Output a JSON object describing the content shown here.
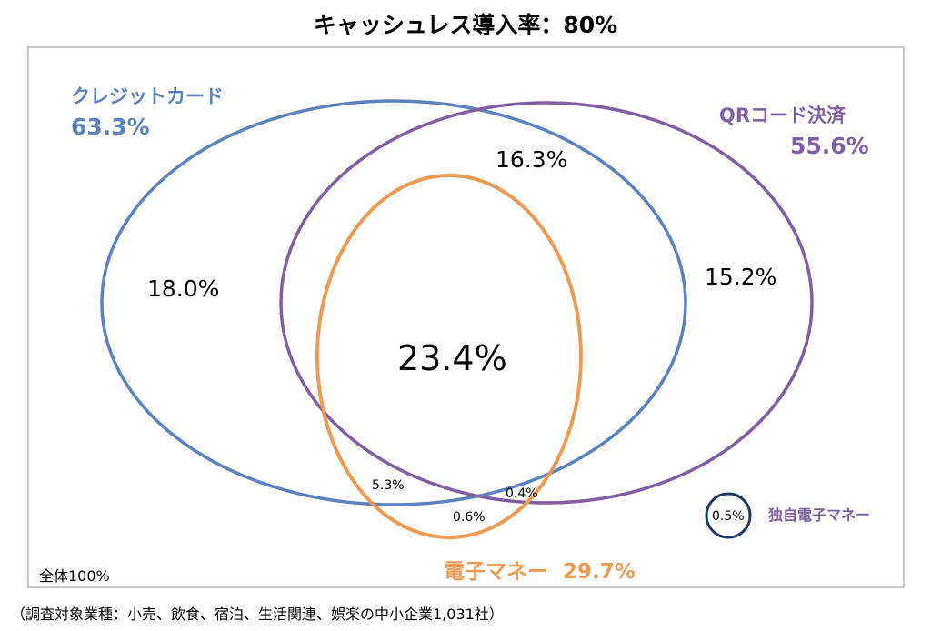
{
  "title": "キャッシュレス導入率：80%",
  "sets": {
    "credit": {
      "name": "クレジットカード",
      "percent": "63.3%",
      "color": "#5b82bc"
    },
    "qr": {
      "name": "QRコード決済",
      "percent": "55.6%",
      "color": "#7d5fa2"
    },
    "emoney": {
      "name": "電子マネー",
      "percent": "29.7%",
      "color": "#ec9b54"
    },
    "own": {
      "name": "独自電子マネー",
      "percent": "0.5%",
      "color": "#1f3864"
    }
  },
  "regions": {
    "credit_only": "18.0%",
    "credit_qr": "16.3%",
    "qr_only": "15.2%",
    "all_three": "23.4%",
    "credit_emoney": "5.3%",
    "qr_emoney": "0.4%",
    "emoney_only": "0.6%"
  },
  "total_label": "全体100%",
  "footnote": "（調査対象業種：小売、飲食、宿泊、生活関連、娯楽の中小企業1,031社）"
}
